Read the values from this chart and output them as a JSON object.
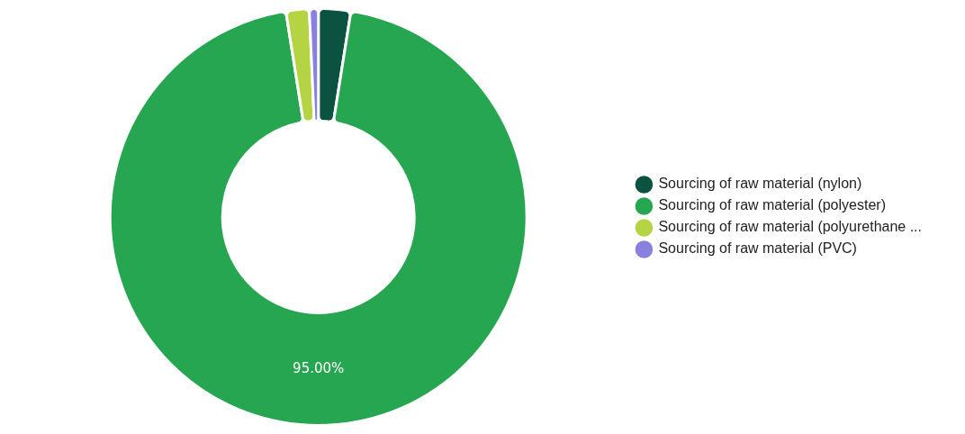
{
  "chart_data": {
    "type": "donut",
    "categories": [
      "Sourcing of raw material (nylon)",
      "Sourcing of raw material (polyester)",
      "Sourcing of raw material (polyurethane ...",
      "Sourcing of raw material (PVC)"
    ],
    "values": [
      2.5,
      95,
      1.8,
      0.7
    ],
    "colors": [
      "#0b5240",
      "#27a651",
      "#b4d443",
      "#8a80dd"
    ],
    "value_labels": [
      null,
      "95.00%",
      null,
      null
    ],
    "legend": "right"
  }
}
